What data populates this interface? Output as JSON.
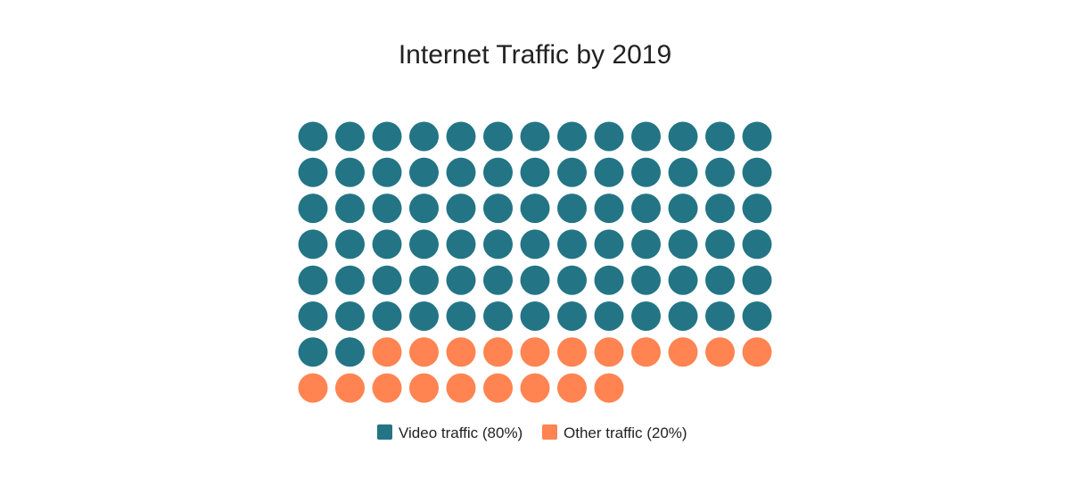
{
  "chart_data": {
    "type": "waffle",
    "title": "Internet Traffic by 2019",
    "grid_columns": 13,
    "series": [
      {
        "name": "Video traffic",
        "percent": 80,
        "count": 80,
        "color": "#237585",
        "legend_label": "Video traffic (80%)"
      },
      {
        "name": "Other traffic",
        "percent": 20,
        "count": 20,
        "color": "#FF8451",
        "legend_label": "Other traffic (20%)"
      }
    ],
    "legend_position": "bottom-center"
  }
}
